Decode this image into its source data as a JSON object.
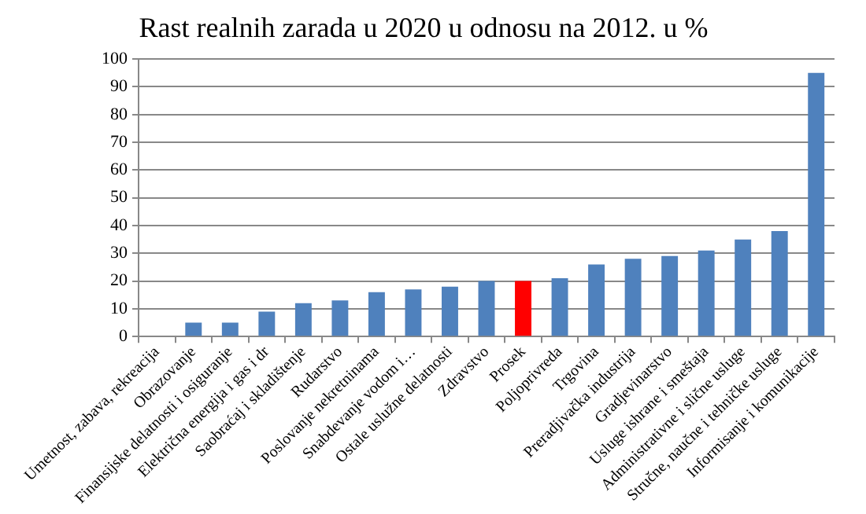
{
  "chart_data": {
    "type": "bar",
    "title": "Rast realnih zarada u 2020 u odnosu na 2012. u %",
    "categories": [
      "Umetnost, zabava, rekreacija",
      "Obrazovanje",
      "Finansijske delatnosti i osiguranje",
      "Električna energija i gas i dr",
      "Saobraćaj i skladištenje",
      "Rudarstvo",
      "Poslovanje nekretninama",
      "Snabdevanje vodom i…",
      "Ostale uslužne delatnosti",
      "Zdravstvo",
      "Prosek",
      "Poljoprivreda",
      "Trgovina",
      "Preradjivačka industrija",
      "Gradjevinarstvo",
      "Usluge ishrane i smeštaja",
      "Administrativne i slične usluge",
      "Stručne, naučne i tehničke usluge",
      "Informisanje i komunikacije"
    ],
    "values": [
      0,
      5,
      5,
      9,
      12,
      13,
      16,
      17,
      18,
      20,
      20,
      21,
      26,
      28,
      29,
      31,
      35,
      38,
      95
    ],
    "colors": [
      "#4f81bd",
      "#4f81bd",
      "#4f81bd",
      "#4f81bd",
      "#4f81bd",
      "#4f81bd",
      "#4f81bd",
      "#4f81bd",
      "#4f81bd",
      "#4f81bd",
      "#ff0000",
      "#4f81bd",
      "#4f81bd",
      "#4f81bd",
      "#4f81bd",
      "#4f81bd",
      "#4f81bd",
      "#4f81bd",
      "#4f81bd"
    ],
    "ylim": [
      0,
      100
    ],
    "yticks": [
      0,
      10,
      20,
      30,
      40,
      50,
      60,
      70,
      80,
      90,
      100
    ],
    "grid": "y",
    "legend": false
  }
}
